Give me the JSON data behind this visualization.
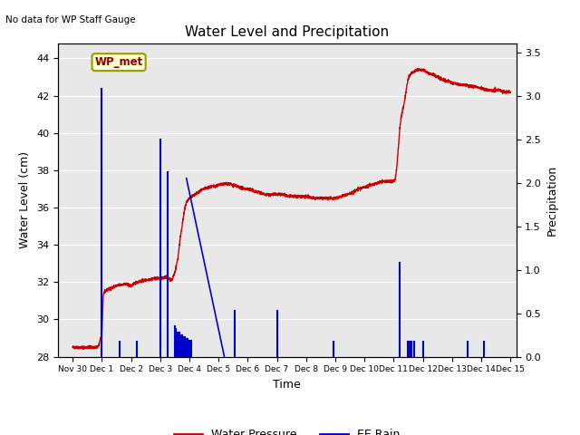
{
  "title": "Water Level and Precipitation",
  "subtitle": "No data for WP Staff Gauge",
  "ylabel_left": "Water Level (cm)",
  "ylabel_right": "Precipitation",
  "xlabel": "Time",
  "annotation": "WP_met",
  "xlim_days": [
    -0.5,
    15.2
  ],
  "ylim_left": [
    28,
    44.8
  ],
  "ylim_right": [
    0.0,
    3.6
  ],
  "yticks_left": [
    28,
    30,
    32,
    34,
    36,
    38,
    40,
    42,
    44
  ],
  "yticks_right": [
    0.0,
    0.5,
    1.0,
    1.5,
    2.0,
    2.5,
    3.0,
    3.5
  ],
  "xtick_positions": [
    0,
    1,
    2,
    3,
    4,
    5,
    6,
    7,
    8,
    9,
    10,
    11,
    12,
    13,
    14,
    15
  ],
  "xtick_labels": [
    "Nov 30",
    "Dec 1",
    "Dec 2",
    "Dec 3",
    "Dec 4",
    "Dec 5",
    "Dec 6",
    "Dec 7",
    "Dec 8",
    "Dec 9",
    "Dec 10",
    "Dec 11",
    "Dec 12",
    "Dec 13",
    "Dec 14",
    "Dec 15"
  ],
  "bg_color": "#e8e8e8",
  "water_color": "#cc0000",
  "rain_color": "#0000cc",
  "legend_entries": [
    "Water Pressure",
    "EE Rain"
  ],
  "water_level_points": [
    [
      0.0,
      28.5
    ],
    [
      0.3,
      28.5
    ],
    [
      0.6,
      28.5
    ],
    [
      0.85,
      28.5
    ],
    [
      0.9,
      28.6
    ],
    [
      0.95,
      29.0
    ],
    [
      1.0,
      29.0
    ],
    [
      1.05,
      31.3
    ],
    [
      1.1,
      31.5
    ],
    [
      1.2,
      31.6
    ],
    [
      1.5,
      31.8
    ],
    [
      1.8,
      31.9
    ],
    [
      2.0,
      31.8
    ],
    [
      2.2,
      32.0
    ],
    [
      2.5,
      32.1
    ],
    [
      2.8,
      32.2
    ],
    [
      3.0,
      32.2
    ],
    [
      3.1,
      32.2
    ],
    [
      3.2,
      32.3
    ],
    [
      3.3,
      32.2
    ],
    [
      3.4,
      32.1
    ],
    [
      3.5,
      32.5
    ],
    [
      3.6,
      33.2
    ],
    [
      3.7,
      34.5
    ],
    [
      3.75,
      35.0
    ],
    [
      3.8,
      35.5
    ],
    [
      3.85,
      36.0
    ],
    [
      3.9,
      36.3
    ],
    [
      4.0,
      36.5
    ],
    [
      4.1,
      36.6
    ],
    [
      4.3,
      36.8
    ],
    [
      4.5,
      37.0
    ],
    [
      4.7,
      37.1
    ],
    [
      5.0,
      37.2
    ],
    [
      5.3,
      37.3
    ],
    [
      5.5,
      37.2
    ],
    [
      5.7,
      37.1
    ],
    [
      5.9,
      37.0
    ],
    [
      6.0,
      37.0
    ],
    [
      6.2,
      36.9
    ],
    [
      6.4,
      36.8
    ],
    [
      6.6,
      36.7
    ],
    [
      6.8,
      36.7
    ],
    [
      7.0,
      36.7
    ],
    [
      7.2,
      36.7
    ],
    [
      7.4,
      36.6
    ],
    [
      7.6,
      36.6
    ],
    [
      7.8,
      36.6
    ],
    [
      8.0,
      36.6
    ],
    [
      8.2,
      36.5
    ],
    [
      8.4,
      36.5
    ],
    [
      8.6,
      36.5
    ],
    [
      8.8,
      36.5
    ],
    [
      9.0,
      36.5
    ],
    [
      9.2,
      36.6
    ],
    [
      9.4,
      36.7
    ],
    [
      9.6,
      36.8
    ],
    [
      9.8,
      37.0
    ],
    [
      10.0,
      37.1
    ],
    [
      10.2,
      37.2
    ],
    [
      10.4,
      37.3
    ],
    [
      10.6,
      37.4
    ],
    [
      10.8,
      37.4
    ],
    [
      11.0,
      37.4
    ],
    [
      11.05,
      37.5
    ],
    [
      11.1,
      38.0
    ],
    [
      11.15,
      39.0
    ],
    [
      11.2,
      40.0
    ],
    [
      11.25,
      40.8
    ],
    [
      11.3,
      41.2
    ],
    [
      11.35,
      41.5
    ],
    [
      11.4,
      42.0
    ],
    [
      11.45,
      42.5
    ],
    [
      11.5,
      42.9
    ],
    [
      11.6,
      43.2
    ],
    [
      11.7,
      43.3
    ],
    [
      11.8,
      43.4
    ],
    [
      11.9,
      43.4
    ],
    [
      12.0,
      43.4
    ],
    [
      12.1,
      43.3
    ],
    [
      12.2,
      43.2
    ],
    [
      12.4,
      43.1
    ],
    [
      12.6,
      42.9
    ],
    [
      12.8,
      42.8
    ],
    [
      13.0,
      42.7
    ],
    [
      13.2,
      42.6
    ],
    [
      13.4,
      42.6
    ],
    [
      13.6,
      42.5
    ],
    [
      13.8,
      42.5
    ],
    [
      14.0,
      42.4
    ],
    [
      14.2,
      42.3
    ],
    [
      14.4,
      42.3
    ],
    [
      14.6,
      42.3
    ],
    [
      14.8,
      42.2
    ],
    [
      15.0,
      42.2
    ]
  ],
  "rain_spikes": [
    [
      1.0,
      3.08
    ],
    [
      1.6,
      0.17
    ],
    [
      2.2,
      0.17
    ],
    [
      3.0,
      2.5
    ],
    [
      3.25,
      2.12
    ],
    [
      3.5,
      0.35
    ],
    [
      3.55,
      0.32
    ],
    [
      3.6,
      0.28
    ],
    [
      3.65,
      0.28
    ],
    [
      3.7,
      0.25
    ],
    [
      3.75,
      0.25
    ],
    [
      3.8,
      0.22
    ],
    [
      3.85,
      0.22
    ],
    [
      3.9,
      0.2
    ],
    [
      3.95,
      0.2
    ],
    [
      4.0,
      0.18
    ],
    [
      4.05,
      0.18
    ],
    [
      5.55,
      0.53
    ],
    [
      7.0,
      0.53
    ],
    [
      8.95,
      0.17
    ],
    [
      11.2,
      1.08
    ],
    [
      11.5,
      0.17
    ],
    [
      11.55,
      0.17
    ],
    [
      11.6,
      0.17
    ],
    [
      11.7,
      0.17
    ],
    [
      12.0,
      0.17
    ],
    [
      13.55,
      0.17
    ],
    [
      14.1,
      0.17
    ]
  ],
  "diagonal_line": [
    [
      3.9,
      2.05
    ],
    [
      5.2,
      0.0
    ]
  ]
}
